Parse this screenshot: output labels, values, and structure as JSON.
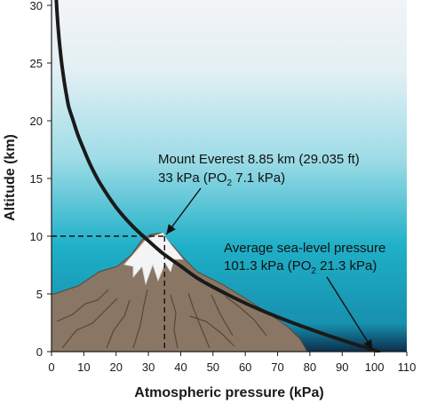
{
  "chart_data": {
    "type": "line",
    "xlabel": "Atmospheric pressure (kPa)",
    "ylabel": "Altitude (km)",
    "xlim": [
      0,
      110
    ],
    "ylim": [
      0,
      30
    ],
    "x_ticks": [
      0,
      10,
      20,
      30,
      40,
      50,
      60,
      70,
      80,
      90,
      100,
      110
    ],
    "y_ticks": [
      0,
      5,
      10,
      15,
      20,
      25,
      30
    ],
    "grid": false,
    "series": [
      {
        "x": [
          101.3,
          90,
          80,
          70,
          60,
          50,
          45,
          40,
          35,
          33,
          30,
          25,
          20,
          15,
          12,
          10,
          8,
          6.5
        ],
        "y": [
          0,
          0.99,
          1.95,
          3.0,
          4.2,
          5.6,
          6.4,
          7.4,
          8.4,
          8.85,
          9.6,
          10.9,
          12.5,
          14.6,
          16.2,
          17.5,
          18.9,
          20.2
        ]
      }
    ],
    "annotations": {
      "everest": {
        "line1": "Mount Everest 8.85 km (29.035 ft)",
        "line2_pre": "33 kPa (PO",
        "line2_sub": "2",
        "line2_post": " 7.1 kPa)",
        "point": {
          "x": 35,
          "y": 10
        }
      },
      "sea_level": {
        "line1": "Average sea-level pressure",
        "line2_pre": "101.3 kPa (PO",
        "line2_sub": "2",
        "line2_post": " 21.3 kPa)",
        "point": {
          "x": 100,
          "y": 0
        }
      }
    },
    "colors": {
      "sky_top": "#f2f4f6",
      "sky_mid": "#9fdce7",
      "sky_low": "#1fb0c8",
      "ground": "#0b2f4c",
      "mountain": "#8a7664",
      "mountain_edge": "#5a4636",
      "snow": "#f4f4f4",
      "curve": "#1a1a1a"
    }
  }
}
